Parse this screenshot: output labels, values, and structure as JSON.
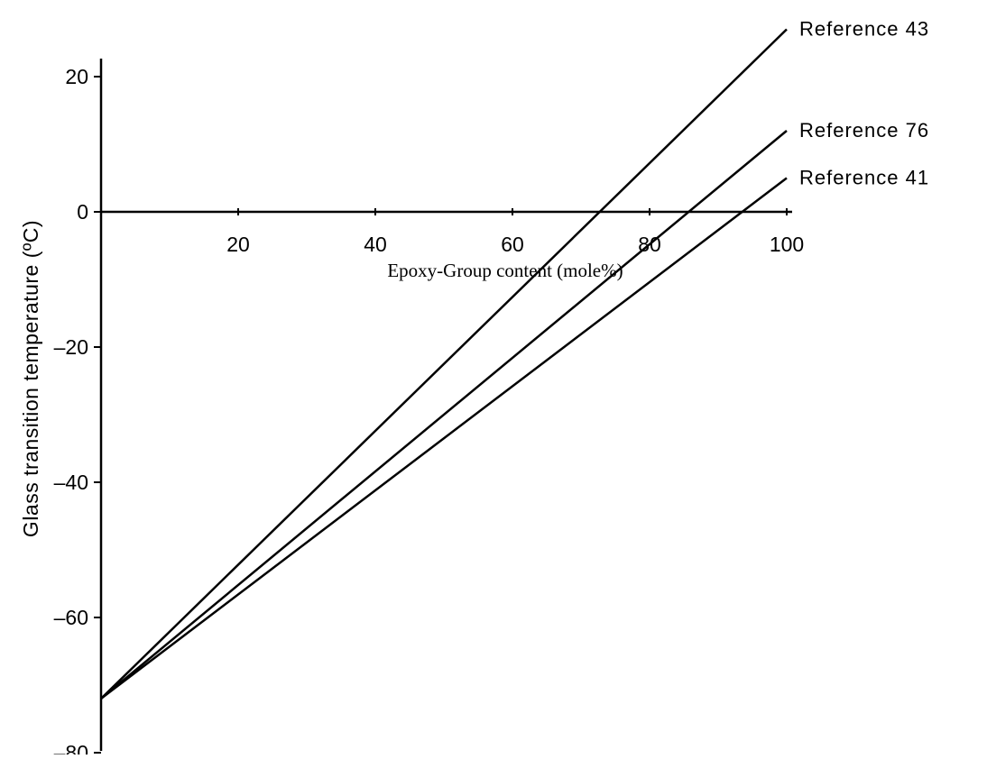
{
  "chart_data": {
    "type": "line",
    "xlabel": "Epoxy-Group content (mole%)",
    "ylabel": "Glass transition temperature (ºC)",
    "xlim": [
      0,
      100
    ],
    "ylim": [
      -80,
      20
    ],
    "x_ticks": [
      "20",
      "40",
      "60",
      "80",
      "100"
    ],
    "y_ticks": [
      "20",
      "0",
      "-20",
      "-40",
      "-60",
      "-80"
    ],
    "grid": false,
    "series": [
      {
        "name": "Reference 43",
        "x": [
          0,
          100
        ],
        "y": [
          -72,
          27
        ]
      },
      {
        "name": "Reference 76",
        "x": [
          0,
          100
        ],
        "y": [
          -72,
          12
        ]
      },
      {
        "name": "Reference 41",
        "x": [
          0,
          100
        ],
        "y": [
          -72,
          5
        ]
      }
    ]
  }
}
